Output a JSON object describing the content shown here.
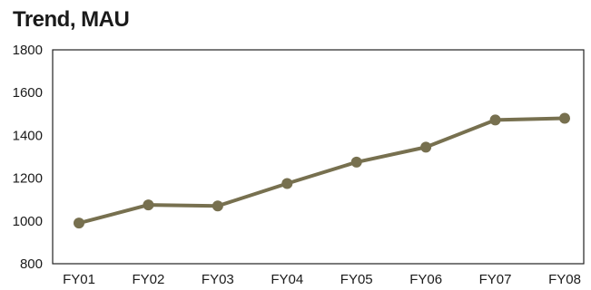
{
  "chart_data": {
    "type": "line",
    "title": "Trend, MAU",
    "xlabel": "",
    "ylabel": "",
    "categories": [
      "FY01",
      "FY02",
      "FY03",
      "FY04",
      "FY05",
      "FY06",
      "FY07",
      "FY08"
    ],
    "values": [
      990,
      1075,
      1070,
      1175,
      1275,
      1345,
      1472,
      1480
    ],
    "ylim": [
      800,
      1800
    ],
    "yticks": [
      800,
      1000,
      1200,
      1400,
      1600,
      1800
    ],
    "grid": false,
    "legend": "none",
    "color": "#77704f"
  }
}
